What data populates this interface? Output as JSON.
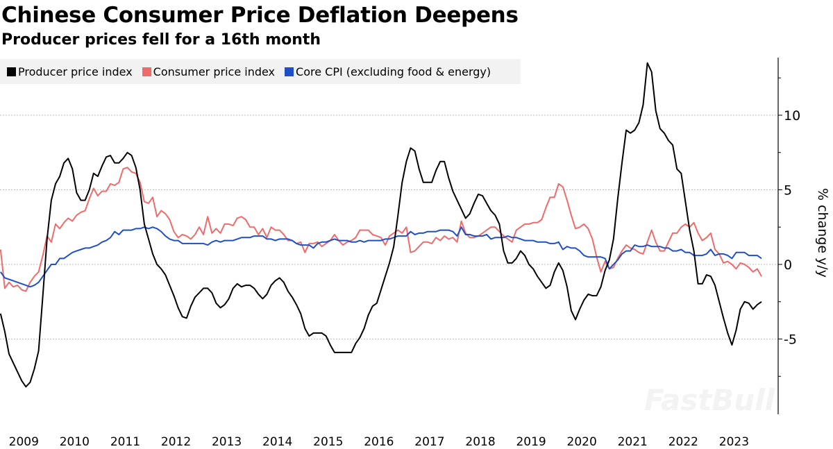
{
  "header": {
    "title": "Chinese Consumer Price Deflation Deepens",
    "subtitle": "Producer prices fell for a 16th month"
  },
  "watermark": "FastBull",
  "chart_data": {
    "type": "line",
    "title": "Chinese Consumer Price Deflation Deepens",
    "subtitle": "Producer prices fell for a 16th month",
    "ylabel": "% change y/y",
    "xlabel": "",
    "x_start": "2009-01",
    "x_end": "2024-01",
    "x_frequency": "monthly",
    "x_tick_labels": [
      "2009",
      "2010",
      "2011",
      "2012",
      "2013",
      "2014",
      "2015",
      "2016",
      "2017",
      "2018",
      "2019",
      "2020",
      "2021",
      "2022",
      "2023"
    ],
    "y_ticks": [
      10,
      5,
      0,
      -5
    ],
    "y_tick_labels": [
      "10",
      "5",
      "0",
      "-5"
    ],
    "ylim": [
      -10,
      14
    ],
    "grid": "horizontal dotted",
    "y_axis_side": "right",
    "legend_position": "top-left",
    "series": [
      {
        "name": "Producer price index",
        "color": "#000000",
        "values": [
          -3.3,
          -4.5,
          -6.0,
          -6.6,
          -7.2,
          -7.8,
          -8.2,
          -7.9,
          -7.0,
          -5.8,
          -2.1,
          1.7,
          4.3,
          5.4,
          5.9,
          6.8,
          7.1,
          6.4,
          4.8,
          4.3,
          4.3,
          5.0,
          6.1,
          5.9,
          6.6,
          7.2,
          7.3,
          6.8,
          6.8,
          7.1,
          7.5,
          7.3,
          6.5,
          5.0,
          2.7,
          1.7,
          0.7,
          0.0,
          -0.3,
          -0.7,
          -1.4,
          -2.1,
          -2.9,
          -3.5,
          -3.6,
          -2.8,
          -2.2,
          -1.9,
          -1.6,
          -1.6,
          -1.9,
          -2.6,
          -2.9,
          -2.7,
          -2.3,
          -1.6,
          -1.3,
          -1.5,
          -1.4,
          -1.4,
          -1.6,
          -2.0,
          -2.3,
          -2.0,
          -1.4,
          -1.1,
          -0.9,
          -1.2,
          -1.8,
          -2.2,
          -2.7,
          -3.3,
          -4.3,
          -4.8,
          -4.6,
          -4.6,
          -4.6,
          -4.8,
          -5.4,
          -5.9,
          -5.9,
          -5.9,
          -5.9,
          -5.9,
          -5.3,
          -4.9,
          -4.3,
          -3.4,
          -2.8,
          -2.6,
          -1.7,
          -0.8,
          0.1,
          1.2,
          3.3,
          5.5,
          6.9,
          7.8,
          7.6,
          6.4,
          5.5,
          5.5,
          5.5,
          6.3,
          6.9,
          6.9,
          5.8,
          4.9,
          4.3,
          3.7,
          3.1,
          3.4,
          4.1,
          4.7,
          4.6,
          4.1,
          3.6,
          3.3,
          2.7,
          0.9,
          0.1,
          0.1,
          0.4,
          0.9,
          0.6,
          0.0,
          -0.3,
          -0.8,
          -1.2,
          -1.6,
          -1.4,
          -0.5,
          0.1,
          -0.4,
          -1.5,
          -3.1,
          -3.7,
          -3.0,
          -2.4,
          -2.0,
          -2.1,
          -2.1,
          -1.5,
          -0.4,
          0.3,
          1.7,
          4.4,
          6.8,
          9.0,
          8.8,
          9.0,
          9.5,
          10.7,
          13.5,
          12.9,
          10.3,
          9.1,
          8.8,
          8.3,
          8.0,
          6.4,
          6.1,
          4.2,
          2.3,
          0.9,
          -1.3,
          -1.3,
          -0.7,
          -0.8,
          -1.4,
          -2.5,
          -3.6,
          -4.6,
          -5.4,
          -4.4,
          -3.0,
          -2.5,
          -2.6,
          -3.0,
          -2.7,
          -2.5
        ]
      },
      {
        "name": "Consumer price index",
        "color": "#f06a6a",
        "values": [
          1.0,
          -1.6,
          -1.2,
          -1.5,
          -1.4,
          -1.7,
          -1.8,
          -1.2,
          -0.8,
          -0.5,
          0.6,
          1.9,
          1.5,
          2.7,
          2.4,
          2.8,
          3.1,
          2.9,
          3.3,
          3.5,
          3.6,
          4.4,
          5.1,
          4.6,
          4.9,
          4.9,
          5.4,
          5.3,
          5.5,
          6.4,
          6.5,
          6.2,
          6.1,
          5.5,
          4.2,
          4.1,
          4.5,
          3.2,
          3.6,
          3.4,
          3.0,
          2.2,
          1.8,
          2.0,
          1.9,
          1.7,
          2.0,
          2.5,
          2.0,
          3.2,
          2.1,
          2.4,
          2.1,
          2.7,
          2.7,
          2.6,
          3.1,
          3.2,
          3.0,
          2.5,
          2.5,
          2.0,
          2.4,
          1.8,
          2.5,
          2.3,
          2.3,
          2.0,
          1.6,
          1.6,
          1.4,
          1.5,
          0.8,
          1.4,
          1.4,
          1.5,
          1.2,
          1.4,
          1.6,
          2.0,
          1.6,
          1.3,
          1.5,
          1.6,
          1.8,
          2.3,
          2.3,
          2.3,
          2.0,
          1.9,
          1.8,
          1.3,
          1.9,
          2.1,
          2.3,
          2.1,
          2.5,
          0.8,
          0.9,
          1.2,
          1.5,
          1.5,
          1.4,
          1.8,
          1.6,
          1.9,
          1.7,
          1.8,
          1.5,
          2.9,
          2.1,
          1.8,
          1.8,
          1.9,
          2.1,
          2.3,
          2.5,
          2.5,
          2.2,
          1.9,
          1.7,
          1.5,
          2.3,
          2.5,
          2.7,
          2.7,
          2.8,
          2.8,
          3.0,
          3.8,
          4.5,
          4.5,
          5.4,
          5.2,
          4.3,
          3.3,
          2.4,
          2.5,
          2.7,
          2.4,
          1.7,
          0.5,
          -0.5,
          0.2,
          -0.3,
          -0.2,
          0.4,
          0.9,
          1.3,
          1.1,
          1.0,
          0.8,
          0.7,
          1.5,
          2.3,
          1.5,
          0.9,
          0.9,
          1.5,
          2.1,
          2.1,
          2.5,
          2.7,
          2.5,
          2.8,
          2.1,
          1.6,
          1.8,
          2.1,
          1.0,
          0.7,
          0.1,
          0.2,
          0.0,
          -0.3,
          0.1,
          0.0,
          -0.2,
          -0.5,
          -0.3,
          -0.8
        ]
      },
      {
        "name": "Core CPI (excluding food & energy)",
        "color": "#1f4fc8",
        "values": [
          -0.5,
          -0.9,
          -1.0,
          -1.1,
          -1.2,
          -1.3,
          -1.4,
          -1.5,
          -1.4,
          -1.2,
          -0.8,
          -0.4,
          0.0,
          0.0,
          0.4,
          0.4,
          0.6,
          0.8,
          0.9,
          1.0,
          1.1,
          1.1,
          1.2,
          1.3,
          1.5,
          1.6,
          1.8,
          2.2,
          2.0,
          2.3,
          2.3,
          2.3,
          2.4,
          2.4,
          2.5,
          2.4,
          2.5,
          2.4,
          2.2,
          1.9,
          1.7,
          1.6,
          1.6,
          1.4,
          1.4,
          1.4,
          1.4,
          1.4,
          1.4,
          1.3,
          1.5,
          1.6,
          1.5,
          1.6,
          1.6,
          1.6,
          1.7,
          1.8,
          1.8,
          1.8,
          1.9,
          1.9,
          1.9,
          1.7,
          1.7,
          1.6,
          1.7,
          1.7,
          1.7,
          1.6,
          1.4,
          1.3,
          1.3,
          1.3,
          1.1,
          1.4,
          1.5,
          1.5,
          1.6,
          1.7,
          1.6,
          1.6,
          1.6,
          1.5,
          1.5,
          1.6,
          1.5,
          1.6,
          1.6,
          1.6,
          1.6,
          1.7,
          1.7,
          1.8,
          1.9,
          1.9,
          1.9,
          2.2,
          2.0,
          2.1,
          2.1,
          2.2,
          2.2,
          2.2,
          2.3,
          2.3,
          2.3,
          2.2,
          1.9,
          2.5,
          2.0,
          2.0,
          1.9,
          1.9,
          1.9,
          2.0,
          1.7,
          1.8,
          1.8,
          1.8,
          1.9,
          1.8,
          1.8,
          1.7,
          1.6,
          1.6,
          1.6,
          1.5,
          1.5,
          1.5,
          1.4,
          1.4,
          1.5,
          1.0,
          1.2,
          1.1,
          1.1,
          0.9,
          0.6,
          0.5,
          0.5,
          0.5,
          0.5,
          0.4,
          -0.3,
          0.0,
          0.3,
          0.7,
          0.9,
          0.9,
          1.3,
          1.2,
          1.2,
          1.3,
          1.2,
          1.2,
          1.2,
          1.1,
          1.1,
          0.9,
          0.9,
          1.0,
          0.8,
          0.8,
          0.6,
          0.6,
          0.6,
          0.7,
          1.0,
          0.6,
          0.7,
          0.7,
          0.6,
          0.4,
          0.8,
          0.8,
          0.8,
          0.6,
          0.6,
          0.6,
          0.4
        ]
      }
    ]
  }
}
